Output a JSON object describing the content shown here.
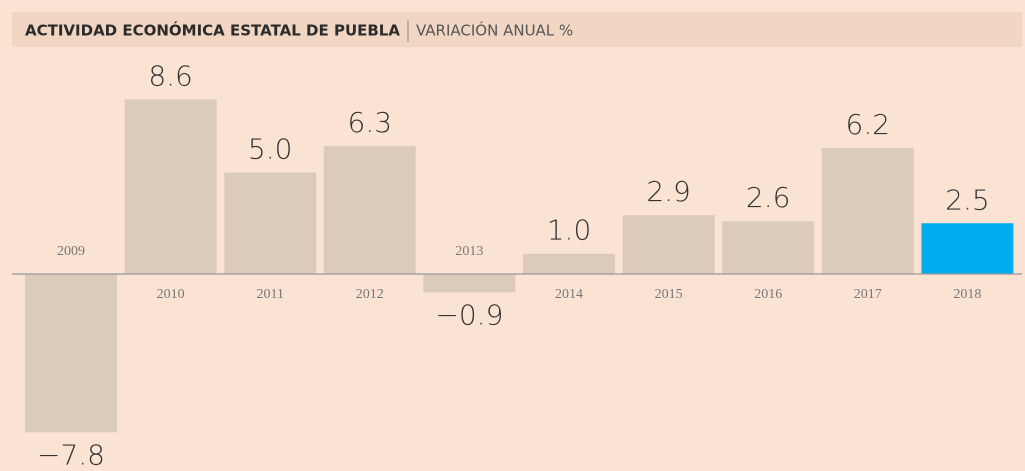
{
  "chart_data": {
    "type": "bar",
    "title": "ACTIVIDAD ECONÓMICA ESTATAL DE PUEBLA",
    "subtitle": "VARIACIÓN ANUAL %",
    "categories": [
      "2009",
      "2010",
      "2011",
      "2012",
      "2013",
      "2014",
      "2015",
      "2016",
      "2017",
      "2018"
    ],
    "values": [
      -7.8,
      8.6,
      5.0,
      6.3,
      -0.9,
      1.0,
      2.9,
      2.6,
      6.2,
      2.5
    ],
    "value_labels": [
      "−7.8",
      "8.6",
      "5.0",
      "6.3",
      "−0.9",
      "1.0",
      "2.9",
      "2.6",
      "6.2",
      "2.5"
    ],
    "color": "#dccbbb",
    "colors": [
      "#dccbbb",
      "#dccbbb",
      "#dccbbb",
      "#dccbbb",
      "#dccbbb",
      "#dccbbb",
      "#dccbbb",
      "#dccbbb",
      "#dccbbb",
      "#00aeef"
    ]
  }
}
